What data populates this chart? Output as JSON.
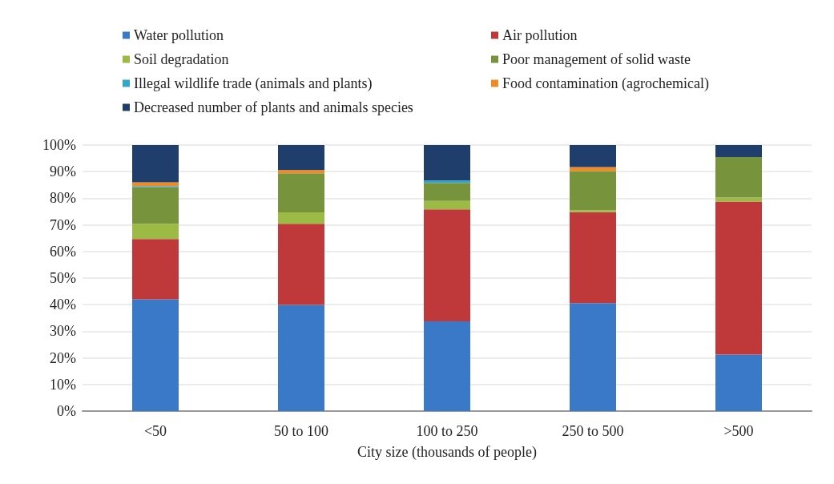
{
  "chart_data": {
    "type": "bar",
    "stacked": true,
    "xlabel": "City size (thousands of people)",
    "categories": [
      "<50",
      "50 to 100",
      "100 to 250",
      "250 to 500",
      ">500"
    ],
    "series": [
      {
        "name": "Water pollution",
        "color": "#3a78c8",
        "values": [
          42,
          39.9,
          33.7,
          40.6,
          21.2
        ]
      },
      {
        "name": "Air pollution",
        "color": "#c0393a",
        "values": [
          22.7,
          30.5,
          42.1,
          34.2,
          57.6
        ]
      },
      {
        "name": "Soil degradation",
        "color": "#9bbb45",
        "values": [
          5.7,
          4.3,
          3.2,
          0.7,
          1.5
        ]
      },
      {
        "name": "Poor management of solid waste",
        "color": "#77933c",
        "values": [
          13.7,
          14.7,
          6.8,
          14.7,
          15.2
        ]
      },
      {
        "name": "Illegal wildlife trade (animals and plants)",
        "color": "#31a6c8",
        "values": [
          0.5,
          0,
          0.9,
          0,
          0
        ]
      },
      {
        "name": "Food contamination (agrochemical)",
        "color": "#f08a24",
        "values": [
          1.4,
          1.2,
          0,
          1.5,
          0
        ]
      },
      {
        "name": "Decreased number of plants and animals species",
        "color": "#1f3e6b",
        "values": [
          14,
          9.4,
          13.3,
          8.3,
          4.5
        ]
      }
    ],
    "ylim": [
      0,
      100
    ],
    "yticks": [
      {
        "value": 0,
        "label": "0%"
      },
      {
        "value": 10,
        "label": "10%"
      },
      {
        "value": 20,
        "label": "20%"
      },
      {
        "value": 30,
        "label": "30%"
      },
      {
        "value": 40,
        "label": "40%"
      },
      {
        "value": 50,
        "label": "50%"
      },
      {
        "value": 60,
        "label": "60%"
      },
      {
        "value": 70,
        "label": "70%"
      },
      {
        "value": 80,
        "label": "80%"
      },
      {
        "value": 90,
        "label": "90%"
      },
      {
        "value": 100,
        "label": "100%"
      }
    ],
    "grid": "y",
    "legend": "top"
  }
}
